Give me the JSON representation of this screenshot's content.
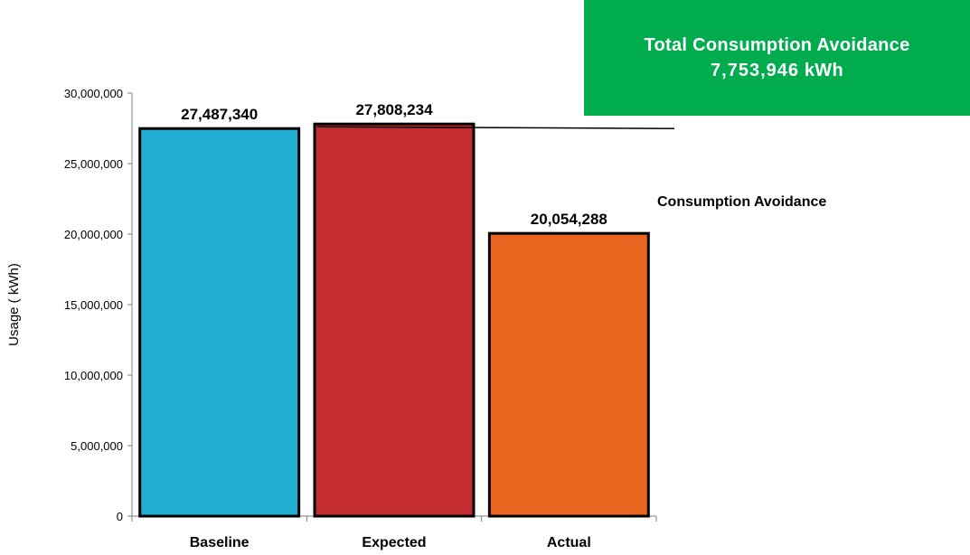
{
  "callout": {
    "title": "Total Consumption Avoidance",
    "value": "7,753,946",
    "unit": "kWh",
    "color": "#00AC4E"
  },
  "annotation": {
    "text": "Consumption Avoidance"
  },
  "chart_data": {
    "type": "bar",
    "categories": [
      "Baseline",
      "Expected",
      "Actual"
    ],
    "values": [
      27487340,
      27808234,
      20054288
    ],
    "data_labels": [
      "27,487,340",
      "27,808,234",
      "20,054,288"
    ],
    "colors": [
      "#1FADD1",
      "#C32D31",
      "#E8641F"
    ],
    "title": "",
    "xlabel": "",
    "ylabel": "Usage ( kWh)",
    "ylim": [
      0,
      30000000
    ],
    "yticks": [
      0,
      5000000,
      10000000,
      15000000,
      20000000,
      25000000,
      30000000
    ],
    "ytick_labels": [
      "0",
      "5,000,000",
      "10,000,000",
      "15,000,000",
      "20,000,000",
      "25,000,000",
      "30,000,000"
    ],
    "grid": false,
    "legend": "none",
    "reference_line": {
      "value": 27487340,
      "start": 27808234
    }
  }
}
